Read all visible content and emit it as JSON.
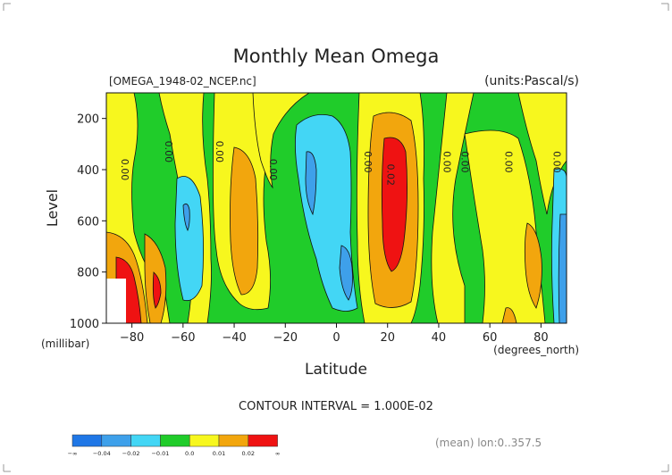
{
  "chart_data": {
    "type": "heatmap",
    "title": "Monthly Mean Omega",
    "file_label": "[OMEGA_1948-02_NCEP.nc]",
    "units_label": "(units:Pascal/s)",
    "xlabel": "Latitude",
    "x_units": "(degrees_north)",
    "ylabel": "Level",
    "y_units": "(millibar)",
    "xlim": [
      -90,
      90
    ],
    "ylim": [
      1000,
      100
    ],
    "x_ticks": [
      -80,
      -60,
      -40,
      -20,
      0,
      20,
      40,
      60,
      80
    ],
    "y_ticks": [
      200,
      400,
      600,
      800,
      1000
    ],
    "contour_interval_text": "CONTOUR INTERVAL = 1.000E-02",
    "mean_text": "(mean) lon:0..357.5",
    "colorbar": {
      "colors": [
        "#1f77e6",
        "#3ea0ea",
        "#43d6f5",
        "#20cc2a",
        "#f7f71e",
        "#f2a60d",
        "#ef1212"
      ],
      "labels": [
        "-∞",
        "-0.04",
        "-0.02",
        "-0.01",
        "0.0",
        "0.01",
        "0.02",
        "∞"
      ]
    },
    "contour_labels": [
      {
        "lat": -84,
        "level": 400,
        "text": "0.00"
      },
      {
        "lat": -67,
        "level": 330,
        "text": "0.00"
      },
      {
        "lat": -47,
        "level": 330,
        "text": "0.00"
      },
      {
        "lat": -26,
        "level": 400,
        "text": "0.00"
      },
      {
        "lat": 11,
        "level": 370,
        "text": "0.00"
      },
      {
        "lat": 20,
        "level": 420,
        "text": "0.02"
      },
      {
        "lat": 42,
        "level": 370,
        "text": "0.00"
      },
      {
        "lat": 49,
        "level": 370,
        "text": "0.00"
      },
      {
        "lat": 66,
        "level": 370,
        "text": "0.00"
      },
      {
        "lat": 85,
        "level": 370,
        "text": "0.00"
      }
    ]
  }
}
